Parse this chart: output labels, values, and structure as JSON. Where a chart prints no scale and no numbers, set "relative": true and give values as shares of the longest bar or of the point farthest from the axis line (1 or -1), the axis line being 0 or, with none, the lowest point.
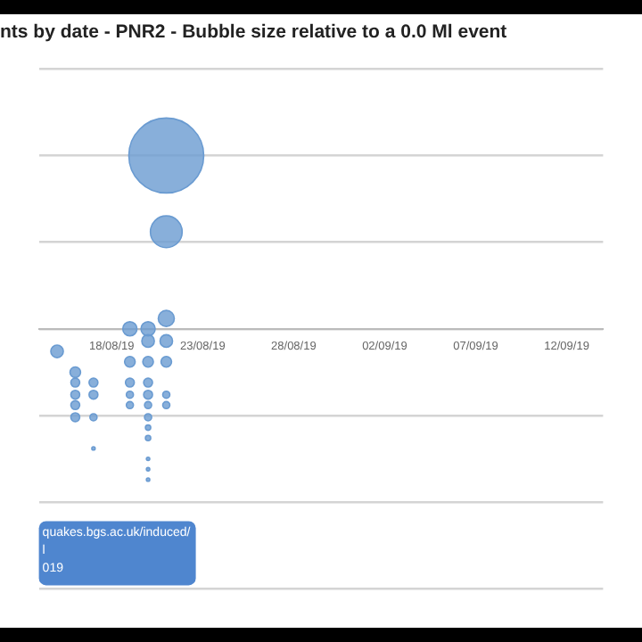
{
  "chart_data": {
    "type": "bubble",
    "title": "nts by date - PNR2 - Bubble size relative to a 0.0 Ml event",
    "relative": true,
    "grid": "y",
    "xlim": [
      "--08-14",
      "--09-14"
    ],
    "xticks": [
      {
        "value": "--08-18",
        "label": "18/08/19"
      },
      {
        "value": "--08-23",
        "label": "23/08/19"
      },
      {
        "value": "--08-28",
        "label": "28/08/19"
      },
      {
        "value": "--09-02",
        "label": "02/09/19"
      },
      {
        "value": "--09-07",
        "label": "07/09/19"
      },
      {
        "value": "--09-12",
        "label": "12/09/19"
      }
    ],
    "series": [
      {
        "color": "#6a9bd1",
        "x": [
          "--08-15",
          "--08-16",
          "--08-16",
          "--08-16",
          "--08-16",
          "--08-16",
          "--08-17",
          "--08-17",
          "--08-17",
          "--08-17",
          "--08-19",
          "--08-19",
          "--08-19",
          "--08-19",
          "--08-19",
          "--08-20",
          "--08-20",
          "--08-20",
          "--08-20",
          "--08-20",
          "--08-20",
          "--08-20",
          "--08-20",
          "--08-20",
          "--08-20",
          "--08-20",
          "--08-20",
          "--08-21",
          "--08-21",
          "--08-21",
          "--08-21",
          "--08-21",
          "--08-21",
          "--08-21"
        ],
        "values": [
          -0.13,
          -0.25,
          -0.31,
          -0.38,
          -0.44,
          -0.51,
          -0.31,
          -0.38,
          -0.51,
          -0.69,
          0,
          -0.19,
          -0.31,
          -0.38,
          -0.44,
          0,
          -0.07,
          -0.19,
          -0.31,
          -0.38,
          -0.44,
          -0.51,
          -0.57,
          -0.63,
          -0.75,
          -0.81,
          -0.87,
          0.06,
          -0.07,
          -0.19,
          -0.38,
          -0.44,
          1,
          0.56
        ],
        "sizes": [
          0.028,
          0.02,
          0.014,
          0.014,
          0.014,
          0.014,
          0.014,
          0.014,
          0.009,
          0.002,
          0.036,
          0.02,
          0.014,
          0.009,
          0.009,
          0.036,
          0.028,
          0.02,
          0.014,
          0.014,
          0.009,
          0.009,
          0.005,
          0.005,
          0.002,
          0.002,
          0.002,
          0.046,
          0.028,
          0.02,
          0.009,
          0.009,
          1,
          0.18
        ]
      }
    ],
    "annotations": [
      "quakes.bgs.ac.uk/induced/\nl\n019"
    ]
  }
}
